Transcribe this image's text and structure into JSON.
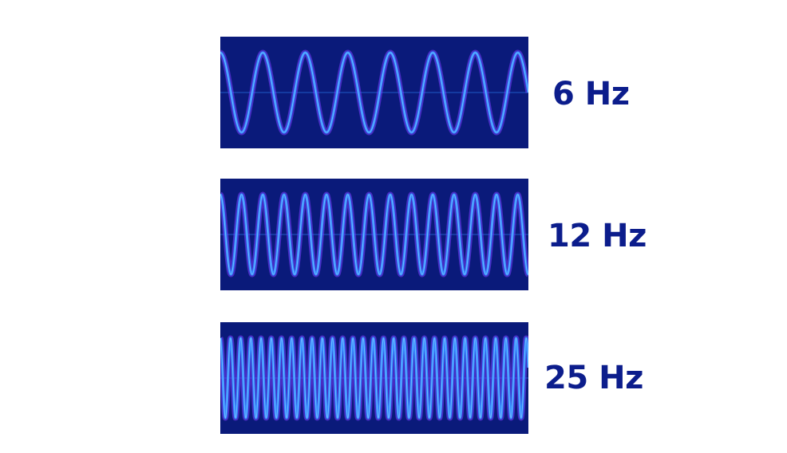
{
  "waves": [
    {
      "label": "6 Hz",
      "frequency_hz": 6
    },
    {
      "label": "12 Hz",
      "frequency_hz": 12
    },
    {
      "label": "25 Hz",
      "frequency_hz": 25
    }
  ],
  "colors": {
    "background": "#ffffff",
    "panel": "#0a1a7a",
    "wave": "#2f8cff",
    "wave_glow": "#7a3cff",
    "label": "#0c1d8c"
  }
}
